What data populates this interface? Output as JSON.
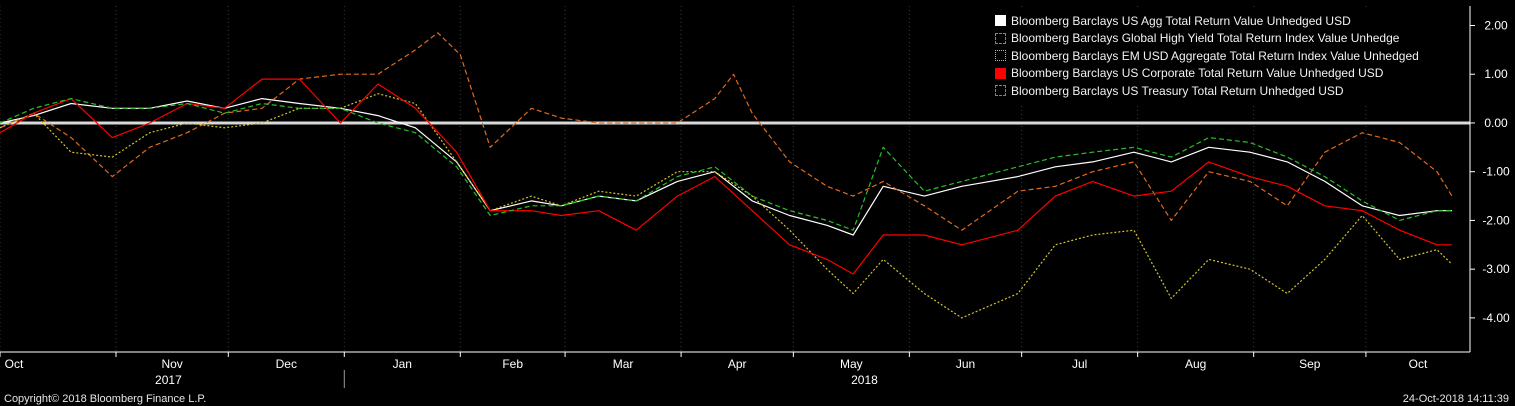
{
  "footer": {
    "copyright": "Copyright© 2018 Bloomberg Finance L.P.",
    "timestamp": "24-Oct-2018 14:11:39"
  },
  "colors": {
    "background": "#000000",
    "zero_line": "#d9d9d9",
    "axis": "#ffffff",
    "divider": "#3a3a3a"
  },
  "chart_data": {
    "type": "line",
    "title": "",
    "xlabel": "",
    "ylabel": "",
    "ylim": [
      -4.7,
      2.4
    ],
    "yticks": [
      2,
      1,
      0,
      -1,
      -2,
      -3,
      -4
    ],
    "ytick_labels": [
      "2.00",
      "1.00",
      "0.00",
      "-1.00",
      "-2.00",
      "-3.00",
      "-4.00"
    ],
    "y_axis_side": "right",
    "grid": "vertical dotted lines at month starts",
    "legend_placement": "top-right",
    "zero_reference_line": 0,
    "x_range": [
      "2017-10-01",
      "2018-10-24"
    ],
    "months": [
      {
        "label": "Oct",
        "date": "2017-10-01"
      },
      {
        "label": "Nov",
        "date": "2017-11-01"
      },
      {
        "label": "Dec",
        "date": "2017-12-01"
      },
      {
        "label": "Jan",
        "date": "2018-01-01"
      },
      {
        "label": "Feb",
        "date": "2018-02-01"
      },
      {
        "label": "Mar",
        "date": "2018-03-01"
      },
      {
        "label": "Apr",
        "date": "2018-04-01"
      },
      {
        "label": "May",
        "date": "2018-05-01"
      },
      {
        "label": "Jun",
        "date": "2018-06-01"
      },
      {
        "label": "Jul",
        "date": "2018-07-01"
      },
      {
        "label": "Aug",
        "date": "2018-08-01"
      },
      {
        "label": "Sep",
        "date": "2018-09-01"
      },
      {
        "label": "Oct",
        "date": "2018-10-01"
      }
    ],
    "years": [
      {
        "label": "2017",
        "center_date": "2017-11-15"
      },
      {
        "label": "2018",
        "center_date": "2018-05-20"
      }
    ],
    "year_break_date": "2018-01-01",
    "series": [
      {
        "name": "Bloomberg Barclays US Agg Total Return Value Unhedged USD",
        "color": "#ffffff",
        "style": "solid",
        "swatch": "filled",
        "points": [
          [
            "2017-10-01",
            0.0
          ],
          [
            "2017-10-10",
            0.15
          ],
          [
            "2017-10-20",
            0.4
          ],
          [
            "2017-10-31",
            0.3
          ],
          [
            "2017-11-10",
            0.3
          ],
          [
            "2017-11-20",
            0.45
          ],
          [
            "2017-11-30",
            0.3
          ],
          [
            "2017-12-10",
            0.5
          ],
          [
            "2017-12-20",
            0.4
          ],
          [
            "2017-12-31",
            0.3
          ],
          [
            "2018-01-10",
            0.15
          ],
          [
            "2018-01-20",
            -0.1
          ],
          [
            "2018-01-31",
            -0.8
          ],
          [
            "2018-02-09",
            -1.8
          ],
          [
            "2018-02-20",
            -1.6
          ],
          [
            "2018-02-28",
            -1.7
          ],
          [
            "2018-03-10",
            -1.5
          ],
          [
            "2018-03-20",
            -1.6
          ],
          [
            "2018-03-31",
            -1.2
          ],
          [
            "2018-04-10",
            -1.0
          ],
          [
            "2018-04-20",
            -1.6
          ],
          [
            "2018-04-30",
            -1.9
          ],
          [
            "2018-05-10",
            -2.1
          ],
          [
            "2018-05-17",
            -2.3
          ],
          [
            "2018-05-25",
            -1.3
          ],
          [
            "2018-06-05",
            -1.5
          ],
          [
            "2018-06-15",
            -1.3
          ],
          [
            "2018-06-30",
            -1.1
          ],
          [
            "2018-07-10",
            -0.9
          ],
          [
            "2018-07-20",
            -0.8
          ],
          [
            "2018-07-31",
            -0.6
          ],
          [
            "2018-08-10",
            -0.8
          ],
          [
            "2018-08-20",
            -0.5
          ],
          [
            "2018-08-31",
            -0.6
          ],
          [
            "2018-09-10",
            -0.8
          ],
          [
            "2018-09-20",
            -1.2
          ],
          [
            "2018-09-30",
            -1.7
          ],
          [
            "2018-10-10",
            -1.9
          ],
          [
            "2018-10-20",
            -1.8
          ],
          [
            "2018-10-24",
            -1.8
          ]
        ]
      },
      {
        "name": "Bloomberg Barclays Global High Yield Total Return Index Value Unhedge",
        "color": "#e06a1c",
        "style": "dashed",
        "swatch": "outline",
        "points": [
          [
            "2017-10-01",
            -0.1
          ],
          [
            "2017-10-10",
            0.2
          ],
          [
            "2017-10-20",
            -0.3
          ],
          [
            "2017-10-31",
            -1.1
          ],
          [
            "2017-11-10",
            -0.5
          ],
          [
            "2017-11-20",
            -0.2
          ],
          [
            "2017-11-30",
            0.2
          ],
          [
            "2017-12-10",
            0.3
          ],
          [
            "2017-12-20",
            0.9
          ],
          [
            "2017-12-31",
            1.0
          ],
          [
            "2018-01-10",
            1.0
          ],
          [
            "2018-01-20",
            1.5
          ],
          [
            "2018-01-26",
            1.85
          ],
          [
            "2018-02-01",
            1.4
          ],
          [
            "2018-02-09",
            -0.5
          ],
          [
            "2018-02-20",
            0.3
          ],
          [
            "2018-02-28",
            0.1
          ],
          [
            "2018-03-10",
            0.0
          ],
          [
            "2018-03-20",
            0.0
          ],
          [
            "2018-03-31",
            0.0
          ],
          [
            "2018-04-10",
            0.5
          ],
          [
            "2018-04-15",
            1.0
          ],
          [
            "2018-04-20",
            0.2
          ],
          [
            "2018-04-30",
            -0.8
          ],
          [
            "2018-05-10",
            -1.3
          ],
          [
            "2018-05-17",
            -1.5
          ],
          [
            "2018-05-25",
            -1.2
          ],
          [
            "2018-06-05",
            -1.7
          ],
          [
            "2018-06-15",
            -2.2
          ],
          [
            "2018-06-30",
            -1.4
          ],
          [
            "2018-07-10",
            -1.3
          ],
          [
            "2018-07-20",
            -1.0
          ],
          [
            "2018-07-31",
            -0.8
          ],
          [
            "2018-08-10",
            -2.0
          ],
          [
            "2018-08-20",
            -1.0
          ],
          [
            "2018-08-31",
            -1.2
          ],
          [
            "2018-09-10",
            -1.7
          ],
          [
            "2018-09-20",
            -0.6
          ],
          [
            "2018-09-30",
            -0.2
          ],
          [
            "2018-10-10",
            -0.4
          ],
          [
            "2018-10-20",
            -1.0
          ],
          [
            "2018-10-24",
            -1.5
          ]
        ]
      },
      {
        "name": "Bloomberg Barclays EM USD Aggregate Total Return Index Value Unhedged",
        "color": "#d4c42a",
        "style": "dotted",
        "swatch": "outline",
        "points": [
          [
            "2017-10-01",
            -0.1
          ],
          [
            "2017-10-10",
            0.2
          ],
          [
            "2017-10-20",
            -0.6
          ],
          [
            "2017-10-31",
            -0.7
          ],
          [
            "2017-11-10",
            -0.2
          ],
          [
            "2017-11-20",
            0.0
          ],
          [
            "2017-11-30",
            -0.1
          ],
          [
            "2017-12-10",
            0.0
          ],
          [
            "2017-12-20",
            0.3
          ],
          [
            "2017-12-31",
            0.3
          ],
          [
            "2018-01-10",
            0.6
          ],
          [
            "2018-01-20",
            0.4
          ],
          [
            "2018-01-31",
            -0.8
          ],
          [
            "2018-02-09",
            -1.8
          ],
          [
            "2018-02-20",
            -1.5
          ],
          [
            "2018-02-28",
            -1.7
          ],
          [
            "2018-03-10",
            -1.4
          ],
          [
            "2018-03-20",
            -1.5
          ],
          [
            "2018-03-31",
            -1.0
          ],
          [
            "2018-04-10",
            -1.0
          ],
          [
            "2018-04-20",
            -1.5
          ],
          [
            "2018-04-30",
            -2.2
          ],
          [
            "2018-05-10",
            -3.0
          ],
          [
            "2018-05-17",
            -3.5
          ],
          [
            "2018-05-25",
            -2.8
          ],
          [
            "2018-06-05",
            -3.5
          ],
          [
            "2018-06-15",
            -4.0
          ],
          [
            "2018-06-30",
            -3.5
          ],
          [
            "2018-07-10",
            -2.5
          ],
          [
            "2018-07-20",
            -2.3
          ],
          [
            "2018-07-31",
            -2.2
          ],
          [
            "2018-08-10",
            -3.6
          ],
          [
            "2018-08-20",
            -2.8
          ],
          [
            "2018-08-31",
            -3.0
          ],
          [
            "2018-09-10",
            -3.5
          ],
          [
            "2018-09-20",
            -2.8
          ],
          [
            "2018-09-30",
            -1.9
          ],
          [
            "2018-10-10",
            -2.8
          ],
          [
            "2018-10-20",
            -2.6
          ],
          [
            "2018-10-24",
            -2.9
          ]
        ]
      },
      {
        "name": "Bloomberg Barclays US Corporate Total Return Value Unhedged USD",
        "color": "#ff0000",
        "style": "solid",
        "swatch": "filled",
        "points": [
          [
            "2017-10-01",
            -0.2
          ],
          [
            "2017-10-10",
            0.2
          ],
          [
            "2017-10-20",
            0.5
          ],
          [
            "2017-10-31",
            -0.3
          ],
          [
            "2017-11-10",
            0.0
          ],
          [
            "2017-11-20",
            0.4
          ],
          [
            "2017-11-30",
            0.3
          ],
          [
            "2017-12-10",
            0.9
          ],
          [
            "2017-12-20",
            0.9
          ],
          [
            "2017-12-31",
            0.0
          ],
          [
            "2018-01-10",
            0.8
          ],
          [
            "2018-01-20",
            0.3
          ],
          [
            "2018-01-31",
            -0.6
          ],
          [
            "2018-02-09",
            -1.8
          ],
          [
            "2018-02-20",
            -1.8
          ],
          [
            "2018-02-28",
            -1.9
          ],
          [
            "2018-03-10",
            -1.8
          ],
          [
            "2018-03-20",
            -2.2
          ],
          [
            "2018-03-31",
            -1.5
          ],
          [
            "2018-04-10",
            -1.1
          ],
          [
            "2018-04-20",
            -1.8
          ],
          [
            "2018-04-30",
            -2.5
          ],
          [
            "2018-05-10",
            -2.8
          ],
          [
            "2018-05-17",
            -3.1
          ],
          [
            "2018-05-25",
            -2.3
          ],
          [
            "2018-06-05",
            -2.3
          ],
          [
            "2018-06-15",
            -2.5
          ],
          [
            "2018-06-30",
            -2.2
          ],
          [
            "2018-07-10",
            -1.5
          ],
          [
            "2018-07-20",
            -1.2
          ],
          [
            "2018-07-31",
            -1.5
          ],
          [
            "2018-08-10",
            -1.4
          ],
          [
            "2018-08-20",
            -0.8
          ],
          [
            "2018-08-31",
            -1.1
          ],
          [
            "2018-09-10",
            -1.3
          ],
          [
            "2018-09-20",
            -1.7
          ],
          [
            "2018-09-30",
            -1.8
          ],
          [
            "2018-10-10",
            -2.2
          ],
          [
            "2018-10-20",
            -2.5
          ],
          [
            "2018-10-24",
            -2.5
          ]
        ]
      },
      {
        "name": "Bloomberg Barclays US Treasury Total Return Unhedged USD",
        "color": "#27c026",
        "style": "dashed",
        "swatch": "outline",
        "points": [
          [
            "2017-10-01",
            0.0
          ],
          [
            "2017-10-10",
            0.3
          ],
          [
            "2017-10-20",
            0.5
          ],
          [
            "2017-10-31",
            0.3
          ],
          [
            "2017-11-10",
            0.3
          ],
          [
            "2017-11-20",
            0.4
          ],
          [
            "2017-11-30",
            0.2
          ],
          [
            "2017-12-10",
            0.4
          ],
          [
            "2017-12-20",
            0.3
          ],
          [
            "2017-12-31",
            0.3
          ],
          [
            "2018-01-10",
            0.0
          ],
          [
            "2018-01-20",
            -0.2
          ],
          [
            "2018-01-31",
            -0.9
          ],
          [
            "2018-02-09",
            -1.9
          ],
          [
            "2018-02-20",
            -1.7
          ],
          [
            "2018-02-28",
            -1.7
          ],
          [
            "2018-03-10",
            -1.5
          ],
          [
            "2018-03-20",
            -1.6
          ],
          [
            "2018-03-31",
            -1.1
          ],
          [
            "2018-04-10",
            -0.9
          ],
          [
            "2018-04-20",
            -1.5
          ],
          [
            "2018-04-30",
            -1.8
          ],
          [
            "2018-05-10",
            -2.0
          ],
          [
            "2018-05-17",
            -2.2
          ],
          [
            "2018-05-25",
            -0.5
          ],
          [
            "2018-06-05",
            -1.4
          ],
          [
            "2018-06-15",
            -1.2
          ],
          [
            "2018-06-30",
            -0.9
          ],
          [
            "2018-07-10",
            -0.7
          ],
          [
            "2018-07-20",
            -0.6
          ],
          [
            "2018-07-31",
            -0.5
          ],
          [
            "2018-08-10",
            -0.7
          ],
          [
            "2018-08-20",
            -0.3
          ],
          [
            "2018-08-31",
            -0.4
          ],
          [
            "2018-09-10",
            -0.7
          ],
          [
            "2018-09-20",
            -1.1
          ],
          [
            "2018-09-30",
            -1.6
          ],
          [
            "2018-10-10",
            -2.0
          ],
          [
            "2018-10-20",
            -1.8
          ],
          [
            "2018-10-24",
            -1.8
          ]
        ]
      }
    ]
  }
}
